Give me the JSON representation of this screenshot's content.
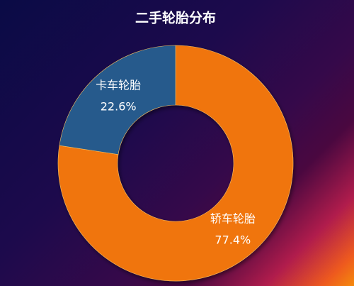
{
  "chart_data": {
    "type": "donut",
    "title": "二手轮胎分布",
    "categories": [
      "轿车轮胎",
      "卡车轮胎"
    ],
    "values": [
      77.4,
      22.6
    ],
    "value_labels": [
      "77.4%",
      "22.6%"
    ],
    "colors": [
      "#f0740f",
      "#285a8c"
    ]
  }
}
